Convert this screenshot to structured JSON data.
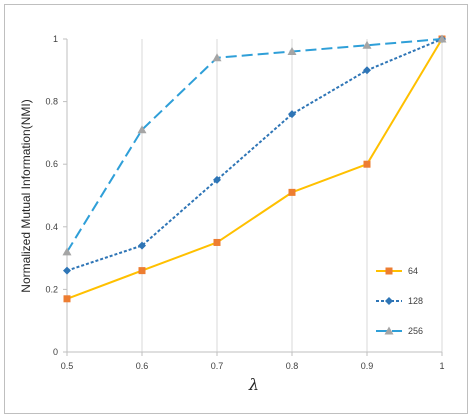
{
  "chart_data": {
    "type": "line",
    "title": "",
    "xlabel": "λ",
    "ylabel": "Normalized Mutual Information(NMI)",
    "x": [
      0.5,
      0.6,
      0.7,
      0.8,
      0.9,
      1
    ],
    "x_tick_labels": [
      "0.5",
      "0.6",
      "0.7",
      "0.8",
      "0.9",
      "1"
    ],
    "y_tick_labels": [
      "0",
      "0.2",
      "0.4",
      "0.6",
      "0.8",
      "1"
    ],
    "xlim": [
      0.5,
      1
    ],
    "ylim": [
      0,
      1
    ],
    "grid": "vertical",
    "legend_position": "right",
    "series": [
      {
        "name": "64",
        "values": [
          0.17,
          0.26,
          0.35,
          0.51,
          0.6,
          1.0
        ],
        "color": "#ffc000",
        "marker": "square",
        "marker_color": "#ed7d31",
        "line": "solid"
      },
      {
        "name": "128",
        "values": [
          0.26,
          0.34,
          0.55,
          0.76,
          0.9,
          1.0
        ],
        "color": "#2e75b6",
        "marker": "diamond",
        "marker_color": "#2e75b6",
        "line": "dotted"
      },
      {
        "name": "256",
        "values": [
          0.32,
          0.71,
          0.94,
          0.96,
          0.98,
          1.0
        ],
        "color": "#2f9fd8",
        "marker": "triangle",
        "marker_color": "#a5a5a5",
        "line": "dashed"
      }
    ]
  }
}
